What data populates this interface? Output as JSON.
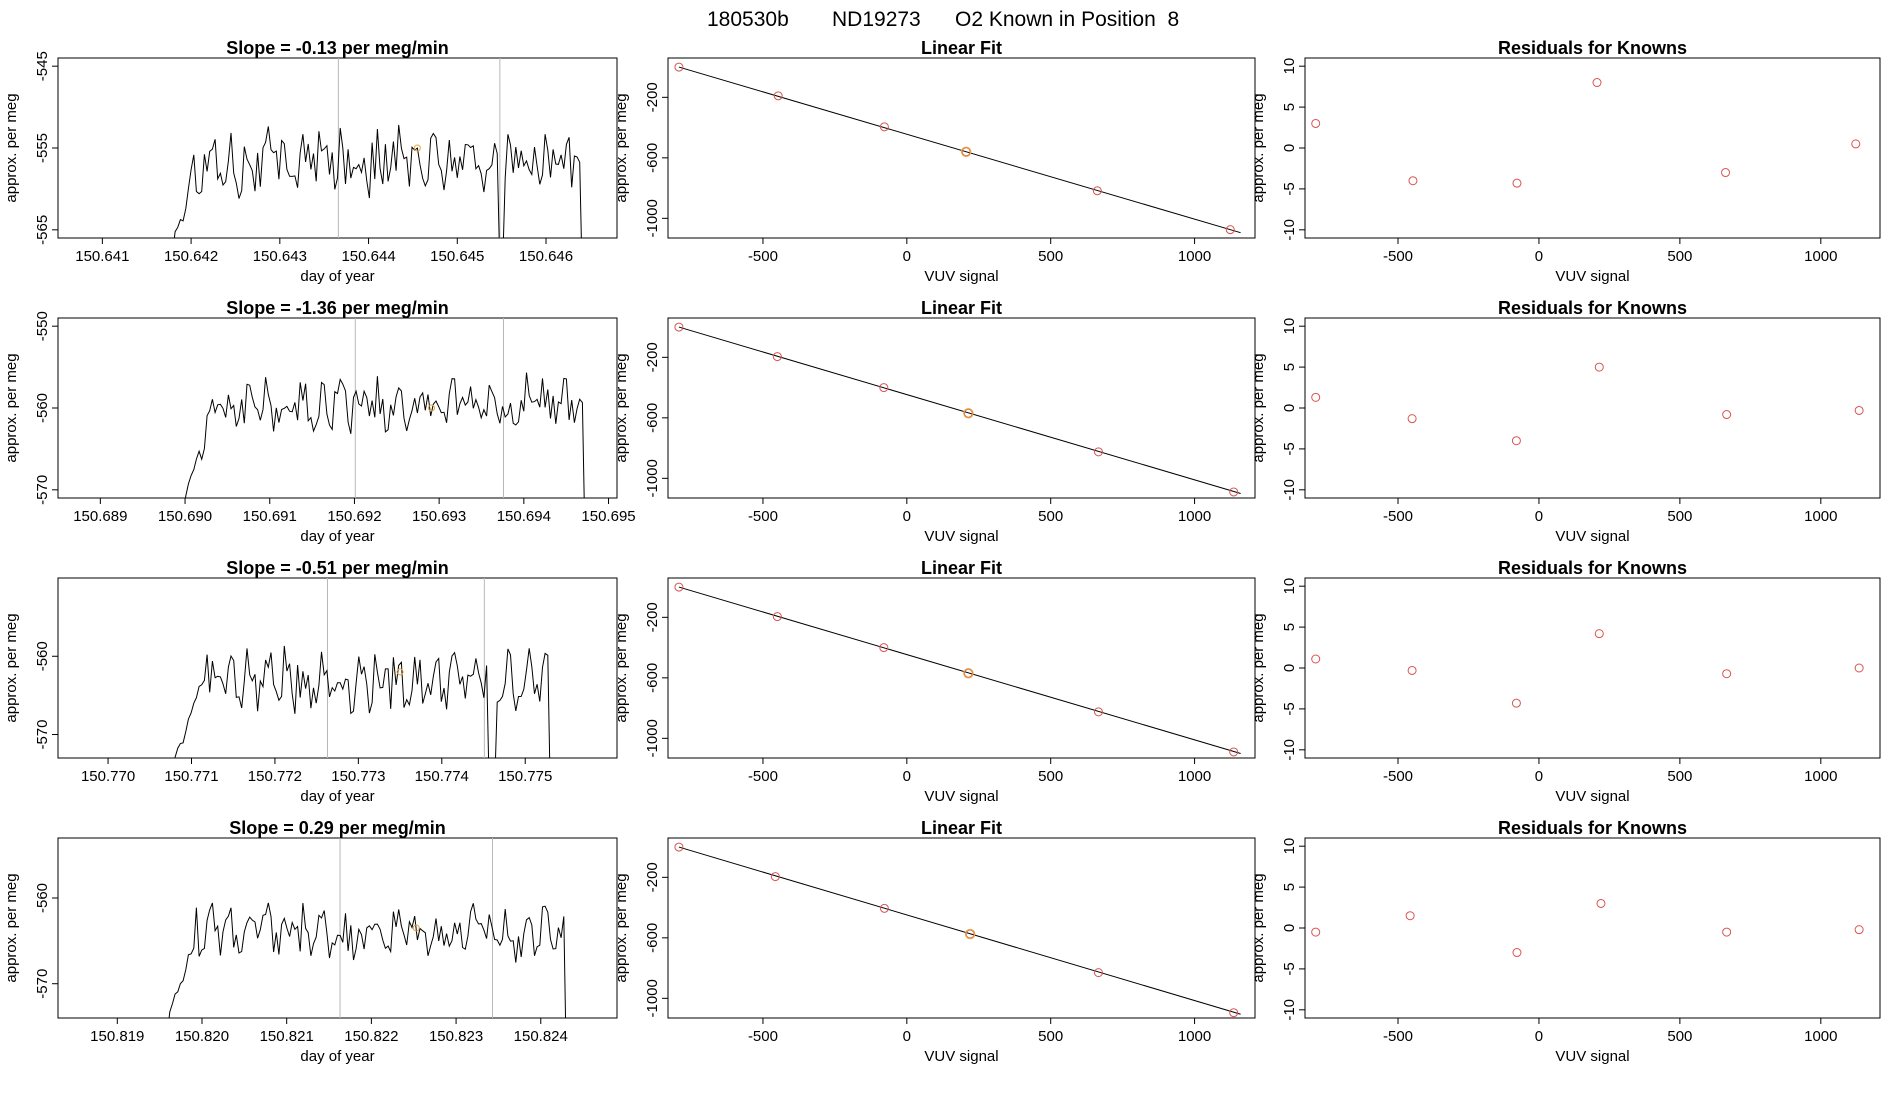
{
  "figure": {
    "title_parts": [
      "180530b",
      "ND19273",
      "O2 Known in Position  8"
    ]
  },
  "colors": {
    "trace": "#000000",
    "guide_line": "#b8b8b8",
    "calibration_point": "#d9534f",
    "known_point": "#e8a33a"
  },
  "chart_data": [
    {
      "type": "line",
      "panel": "row1-time-series",
      "title": "Slope =  -0.13  per meg/min",
      "xlabel": "day of year",
      "ylabel": "approx. per meg",
      "xlim": [
        150.6405,
        150.6468
      ],
      "ylim": [
        -566,
        -544
      ],
      "xticks": [
        "150.641",
        "150.642",
        "150.643",
        "150.644",
        "150.645",
        "150.646"
      ],
      "yticks": [
        "-545",
        "-555",
        "-565"
      ],
      "t_start": 150.6418,
      "t_end": 150.6464,
      "t_drop": 150.6455,
      "mean": -556.5,
      "amplitude": 3.2,
      "guide_lines": [
        150.64366,
        150.64548
      ],
      "known_marker": {
        "x": 150.64455,
        "y": -555
      }
    },
    {
      "type": "scatter",
      "panel": "row1-linear-fit",
      "title": "Linear Fit",
      "xlabel": "VUV signal",
      "ylabel": "approx. per meg",
      "xlim": [
        -830,
        1210
      ],
      "ylim": [
        -1130,
        60
      ],
      "xticks": [
        "-500",
        "0",
        "500",
        "1000"
      ],
      "yticks": [
        "-200",
        "-600",
        "-1000"
      ],
      "points": [
        {
          "x": -792,
          "y": 0
        },
        {
          "x": -447,
          "y": -190
        },
        {
          "x": -78,
          "y": -395
        },
        {
          "x": 206,
          "y": -560
        },
        {
          "x": 662,
          "y": -818
        },
        {
          "x": 1124,
          "y": -1075
        }
      ],
      "known_x": 206,
      "fit": {
        "x1": -792,
        "y1": 0,
        "x2": 1160,
        "y2": -1095
      }
    },
    {
      "type": "scatter",
      "panel": "row1-residuals",
      "title": "Residuals for Knowns",
      "xlabel": "VUV signal",
      "ylabel": "approx. per meg",
      "xlim": [
        -830,
        1210
      ],
      "ylim": [
        -11,
        11
      ],
      "xticks": [
        "-500",
        "0",
        "500",
        "1000"
      ],
      "yticks": [
        "10",
        "5",
        "0",
        "-5",
        "-10"
      ],
      "points": [
        {
          "x": -792,
          "y": 3
        },
        {
          "x": -447,
          "y": -4
        },
        {
          "x": -78,
          "y": -4.3
        },
        {
          "x": 206,
          "y": 8
        },
        {
          "x": 662,
          "y": -3
        },
        {
          "x": 1124,
          "y": 0.5
        }
      ]
    },
    {
      "type": "line",
      "panel": "row2-time-series",
      "title": "Slope =  -1.36  per meg/min",
      "xlabel": "day of year",
      "ylabel": "approx. per meg",
      "xlim": [
        150.6885,
        150.6951
      ],
      "ylim": [
        -571,
        -549
      ],
      "xticks": [
        "150.689",
        "150.690",
        "150.691",
        "150.692",
        "150.693",
        "150.694",
        "150.695"
      ],
      "yticks": [
        "-550",
        "-560",
        "-570"
      ],
      "t_start": 150.69,
      "t_end": 150.6947,
      "t_drop": null,
      "mean": -559.5,
      "amplitude": 2.6,
      "guide_lines": [
        150.69201,
        150.69376
      ],
      "known_marker": {
        "x": 150.69291,
        "y": -560
      }
    },
    {
      "type": "scatter",
      "panel": "row2-linear-fit",
      "title": "Linear Fit",
      "xlabel": "VUV signal",
      "ylabel": "approx. per meg",
      "xlim": [
        -830,
        1210
      ],
      "ylim": [
        -1130,
        60
      ],
      "xticks": [
        "-500",
        "0",
        "500",
        "1000"
      ],
      "yticks": [
        "-200",
        "-600",
        "-1000"
      ],
      "points": [
        {
          "x": -792,
          "y": 0
        },
        {
          "x": -450,
          "y": -195
        },
        {
          "x": -80,
          "y": -400
        },
        {
          "x": 214,
          "y": -570
        },
        {
          "x": 666,
          "y": -825
        },
        {
          "x": 1136,
          "y": -1090
        }
      ],
      "known_x": 214,
      "fit": {
        "x1": -792,
        "y1": 0,
        "x2": 1160,
        "y2": -1100
      }
    },
    {
      "type": "scatter",
      "panel": "row2-residuals",
      "title": "Residuals for Knowns",
      "xlabel": "VUV signal",
      "ylabel": "approx. per meg",
      "xlim": [
        -830,
        1210
      ],
      "ylim": [
        -11,
        11
      ],
      "xticks": [
        "-500",
        "0",
        "500",
        "1000"
      ],
      "yticks": [
        "10",
        "5",
        "0",
        "-5",
        "-10"
      ],
      "points": [
        {
          "x": -792,
          "y": 1.3
        },
        {
          "x": -450,
          "y": -1.3
        },
        {
          "x": -80,
          "y": -4
        },
        {
          "x": 214,
          "y": 5
        },
        {
          "x": 666,
          "y": -0.8
        },
        {
          "x": 1136,
          "y": -0.3
        }
      ]
    },
    {
      "type": "line",
      "panel": "row3-time-series",
      "title": "Slope =  -0.51  per meg/min",
      "xlabel": "day of year",
      "ylabel": "approx. per meg",
      "xlim": [
        150.7694,
        150.7761
      ],
      "ylim": [
        -573,
        -550
      ],
      "xticks": [
        "150.770",
        "150.771",
        "150.772",
        "150.773",
        "150.774",
        "150.775"
      ],
      "yticks": [
        "-560",
        "-570"
      ],
      "t_start": 150.7708,
      "t_end": 150.7753,
      "t_drop": 150.7746,
      "mean": -563,
      "amplitude": 3.1,
      "guide_lines": [
        150.77263,
        150.77451
      ],
      "known_marker": {
        "x": 150.7735,
        "y": -562
      }
    },
    {
      "type": "scatter",
      "panel": "row3-linear-fit",
      "title": "Linear Fit",
      "xlabel": "VUV signal",
      "ylabel": "approx. per meg",
      "xlim": [
        -830,
        1210
      ],
      "ylim": [
        -1130,
        60
      ],
      "xticks": [
        "-500",
        "0",
        "500",
        "1000"
      ],
      "yticks": [
        "-200",
        "-600",
        "-1000"
      ],
      "points": [
        {
          "x": -792,
          "y": 0
        },
        {
          "x": -450,
          "y": -195
        },
        {
          "x": -80,
          "y": -400
        },
        {
          "x": 214,
          "y": -570
        },
        {
          "x": 666,
          "y": -825
        },
        {
          "x": 1136,
          "y": -1090
        }
      ],
      "known_x": 214,
      "fit": {
        "x1": -792,
        "y1": 0,
        "x2": 1160,
        "y2": -1100
      }
    },
    {
      "type": "scatter",
      "panel": "row3-residuals",
      "title": "Residuals for Knowns",
      "xlabel": "VUV signal",
      "ylabel": "approx. per meg",
      "xlim": [
        -830,
        1210
      ],
      "ylim": [
        -11,
        11
      ],
      "xticks": [
        "-500",
        "0",
        "500",
        "1000"
      ],
      "yticks": [
        "10",
        "5",
        "0",
        "-5",
        "-10"
      ],
      "points": [
        {
          "x": -792,
          "y": 1.1
        },
        {
          "x": -450,
          "y": -0.3
        },
        {
          "x": -80,
          "y": -4.3
        },
        {
          "x": 214,
          "y": 4.2
        },
        {
          "x": 666,
          "y": -0.7
        },
        {
          "x": 1136,
          "y": 0
        }
      ]
    },
    {
      "type": "line",
      "panel": "row4-time-series",
      "title": "Slope =  0.29  per meg/min",
      "xlabel": "day of year",
      "ylabel": "approx. per meg",
      "xlim": [
        150.8183,
        150.8249
      ],
      "ylim": [
        -574,
        -553
      ],
      "xticks": [
        "150.819",
        "150.820",
        "150.821",
        "150.822",
        "150.823",
        "150.824"
      ],
      "yticks": [
        "-560",
        "-570"
      ],
      "t_start": 150.8196,
      "t_end": 150.8243,
      "t_drop": null,
      "mean": -564,
      "amplitude": 2.6,
      "guide_lines": [
        150.82163,
        150.82343
      ],
      "known_marker": {
        "x": 150.82253,
        "y": -563.5
      }
    },
    {
      "type": "scatter",
      "panel": "row4-linear-fit",
      "title": "Linear Fit",
      "xlabel": "VUV signal",
      "ylabel": "approx. per meg",
      "xlim": [
        -830,
        1210
      ],
      "ylim": [
        -1130,
        60
      ],
      "xticks": [
        "-500",
        "0",
        "500",
        "1000"
      ],
      "yticks": [
        "-200",
        "-600",
        "-1000"
      ],
      "points": [
        {
          "x": -792,
          "y": 0
        },
        {
          "x": -457,
          "y": -195
        },
        {
          "x": -78,
          "y": -405
        },
        {
          "x": 220,
          "y": -575
        },
        {
          "x": 666,
          "y": -830
        },
        {
          "x": 1136,
          "y": -1095
        }
      ],
      "known_x": 220,
      "fit": {
        "x1": -792,
        "y1": 0,
        "x2": 1160,
        "y2": -1105
      }
    },
    {
      "type": "scatter",
      "panel": "row4-residuals",
      "title": "Residuals for Knowns",
      "xlabel": "VUV signal",
      "ylabel": "approx. per meg",
      "xlim": [
        -830,
        1210
      ],
      "ylim": [
        -11,
        11
      ],
      "xticks": [
        "-500",
        "0",
        "500",
        "1000"
      ],
      "yticks": [
        "10",
        "5",
        "0",
        "-5",
        "-10"
      ],
      "points": [
        {
          "x": -792,
          "y": -0.5
        },
        {
          "x": -457,
          "y": 1.5
        },
        {
          "x": -78,
          "y": -3
        },
        {
          "x": 220,
          "y": 3
        },
        {
          "x": 666,
          "y": -0.5
        },
        {
          "x": 1136,
          "y": -0.2
        }
      ]
    }
  ]
}
